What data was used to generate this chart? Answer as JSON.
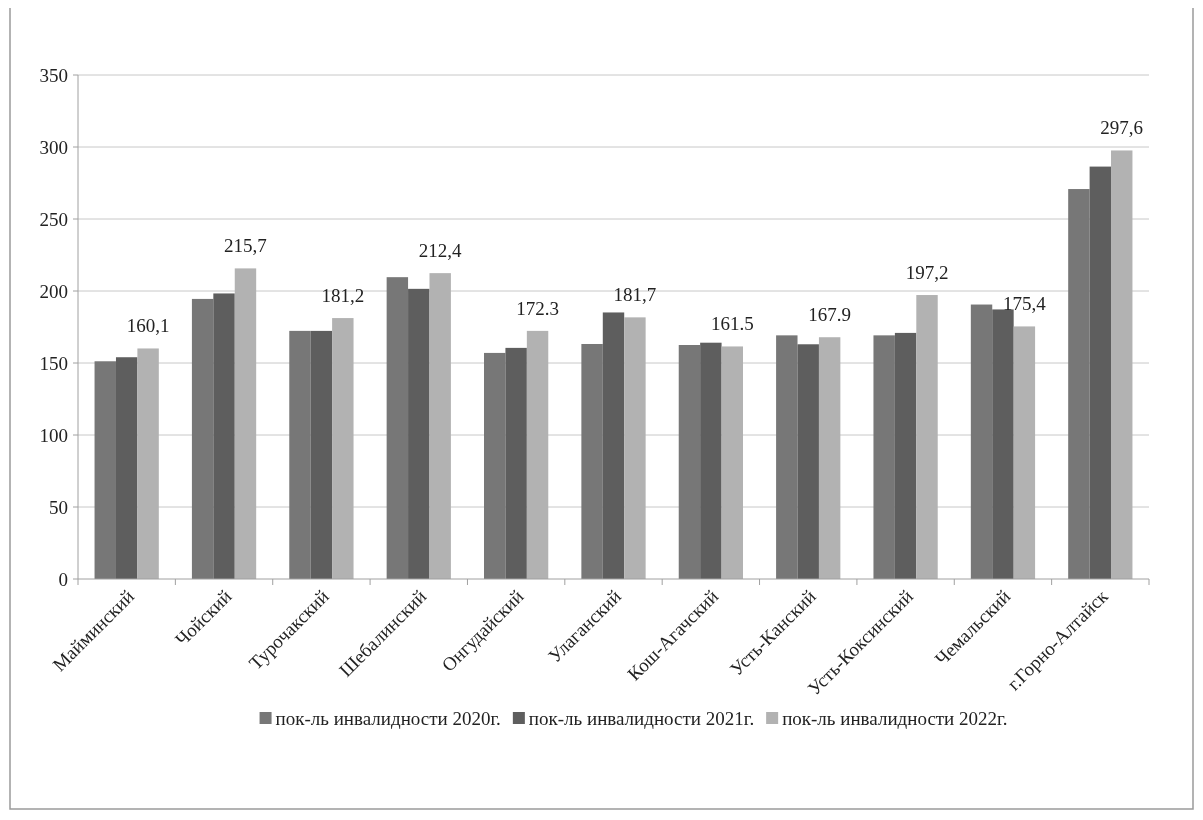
{
  "chart_data": {
    "type": "bar",
    "categories": [
      "Майминский",
      "Чойский",
      "Турочакский",
      "Шебалинский",
      "Онгудайский",
      "Улаганский",
      "Кош-Агачский",
      "Усть-Канский",
      "Усть-Коксинский",
      "Чемальский",
      "г.Горно-Алтайск"
    ],
    "series": [
      {
        "name": "пок-ль инвалидности 2020г.",
        "color": "#777777",
        "values": [
          151.2,
          194.5,
          172.3,
          209.6,
          157.0,
          163.2,
          162.5,
          169.2,
          169.2,
          190.6,
          270.8
        ]
      },
      {
        "name": "пок-ль инвалидности 2021г.",
        "color": "#5e5e5e",
        "values": [
          154.0,
          198.3,
          172.3,
          201.5,
          160.5,
          185.1,
          164.1,
          163.0,
          170.9,
          187.2,
          286.4
        ]
      },
      {
        "name": "пок-ль инвалидности 2022г.",
        "color": "#b2b2b2",
        "values": [
          160.1,
          215.7,
          181.2,
          212.4,
          172.3,
          181.7,
          161.5,
          167.9,
          197.2,
          175.4,
          297.6
        ],
        "value_labels": [
          "160,1",
          "215,7",
          "181,2",
          "212,4",
          "172.3",
          "181,7",
          "161.5",
          "167.9",
          "197,2",
          "175,4",
          "297,6"
        ]
      }
    ],
    "ylim": [
      0,
      350
    ],
    "yticks": [
      0,
      50,
      100,
      150,
      200,
      250,
      300,
      350
    ],
    "grid": "y",
    "legend": "bottom"
  }
}
